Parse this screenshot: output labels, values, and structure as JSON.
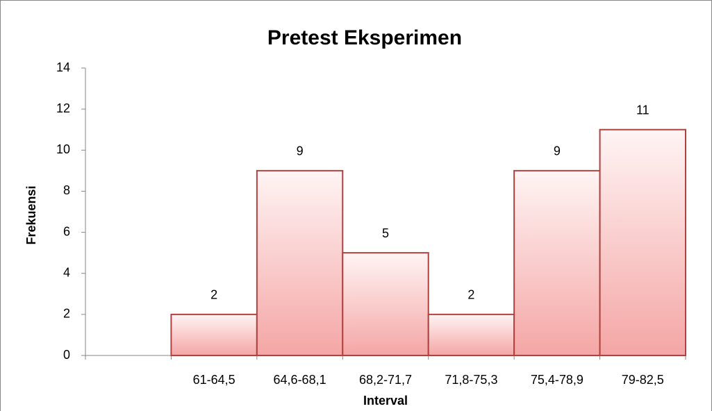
{
  "chart_data": {
    "type": "bar",
    "title": "Pretest Eksperimen",
    "xlabel": "Interval",
    "ylabel": "Frekuensi",
    "categories": [
      null,
      "61-64,5",
      "64,6-68,1",
      "68,2-71,7",
      "71,8-75,3",
      "75,4-78,9",
      "79-82,5"
    ],
    "values": [
      null,
      2,
      9,
      5,
      2,
      9,
      11
    ],
    "color": "#f4a6a5",
    "edgecolor": "#b0413e",
    "ylim": [
      0,
      14
    ],
    "yticks": [
      0,
      2,
      4,
      6,
      8,
      10,
      12,
      14
    ],
    "grid": false
  }
}
